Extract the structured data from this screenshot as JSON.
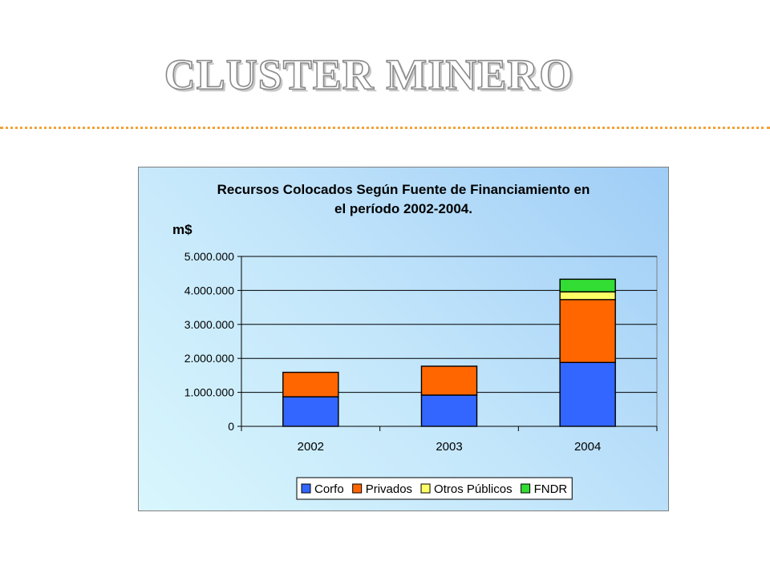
{
  "slide": {
    "title": "CLUSTER MINERO",
    "colors": {
      "title_fill": "#ffffff",
      "title_outline": "#8a8a8a",
      "rule": "#f2a23a"
    }
  },
  "chart_data": {
    "type": "bar",
    "stacked": true,
    "title_line1": "Recursos Colocados Según Fuente de Financiamiento en",
    "title_line2": "el período  2002-2004.",
    "ylabel": "m$",
    "xlabel": "",
    "categories": [
      "2002",
      "2003",
      "2004"
    ],
    "ylim": [
      0,
      5000000
    ],
    "yticks": [
      {
        "value": 0,
        "label": "0"
      },
      {
        "value": 1000000,
        "label": "1.000.000"
      },
      {
        "value": 2000000,
        "label": "2.000.000"
      },
      {
        "value": 3000000,
        "label": "3.000.000"
      },
      {
        "value": 4000000,
        "label": "4.000.000"
      },
      {
        "value": 5000000,
        "label": "5.000.000"
      }
    ],
    "grid": true,
    "legend_position": "bottom",
    "series": [
      {
        "name": "Corfo",
        "color": "#3366ff",
        "values": [
          870000,
          920000,
          1880000
        ]
      },
      {
        "name": "Privados",
        "color": "#ff6600",
        "values": [
          720000,
          850000,
          1850000
        ]
      },
      {
        "name": "Otros Públicos",
        "color": "#ffff66",
        "values": [
          0,
          0,
          230000
        ]
      },
      {
        "name": "FNDR",
        "color": "#33dd33",
        "values": [
          0,
          0,
          370000
        ]
      }
    ]
  }
}
